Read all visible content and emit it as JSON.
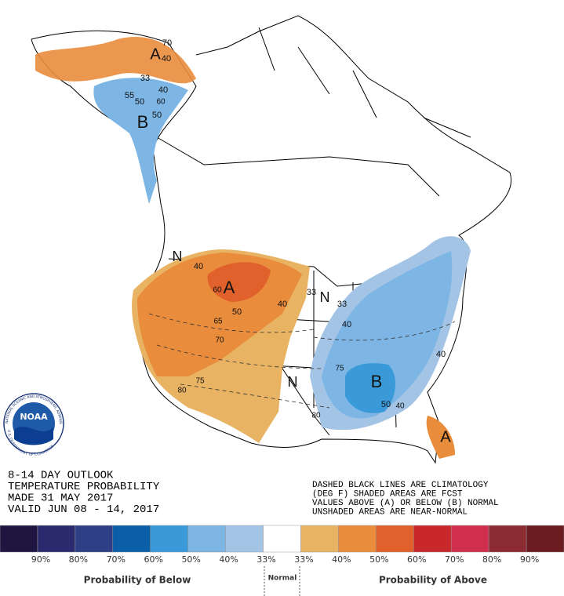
{
  "title_block": {
    "lines": [
      "8-14 DAY OUTLOOK",
      "TEMPERATURE PROBABILITY",
      "MADE  31 MAY 2017",
      "VALID  JUN 08 - 14, 2017"
    ]
  },
  "notes": [
    "DASHED BLACK LINES ARE CLIMATOLOGY",
    "(DEG F) SHADED AREAS ARE FCST",
    "VALUES ABOVE (A) OR BELOW (B) NORMAL",
    "UNSHADED AREAS ARE NEAR-NORMAL"
  ],
  "map_labels": [
    "70",
    "A",
    "40",
    "33",
    "40",
    "55",
    "50",
    "60",
    "B",
    "50",
    "N",
    "40",
    "60",
    "A",
    "50",
    "40",
    "33",
    "N",
    "33",
    "65",
    "70",
    "75",
    "80",
    "N",
    "40",
    "75",
    "B",
    "50",
    "40",
    "80",
    "40",
    "A"
  ],
  "logo": {
    "name": "NOAA",
    "ring_top": "NATIONAL OCEANIC AND ATMOSPHERIC ADMINISTRATION",
    "ring_bottom": "U.S. DEPARTMENT OF COMMERCE"
  },
  "legend": {
    "colors": [
      "#1e1540",
      "#2a2a6e",
      "#2e3f86",
      "#0b5ea8",
      "#3a9ad9",
      "#7db6e4",
      "#a4c4e6",
      "#ffffff",
      "#e8b464",
      "#e98c3c",
      "#e0612c",
      "#c9282b",
      "#cf2e4c",
      "#8c2a32",
      "#6a1c20"
    ],
    "labels": [
      "90%",
      "80%",
      "70%",
      "60%",
      "50%",
      "40%",
      "33%",
      "33%",
      "40%",
      "50%",
      "60%",
      "70%",
      "80%",
      "90%"
    ],
    "below_title": "Probability of Below",
    "normal_title": "Normal",
    "above_title": "Probability of Above"
  }
}
